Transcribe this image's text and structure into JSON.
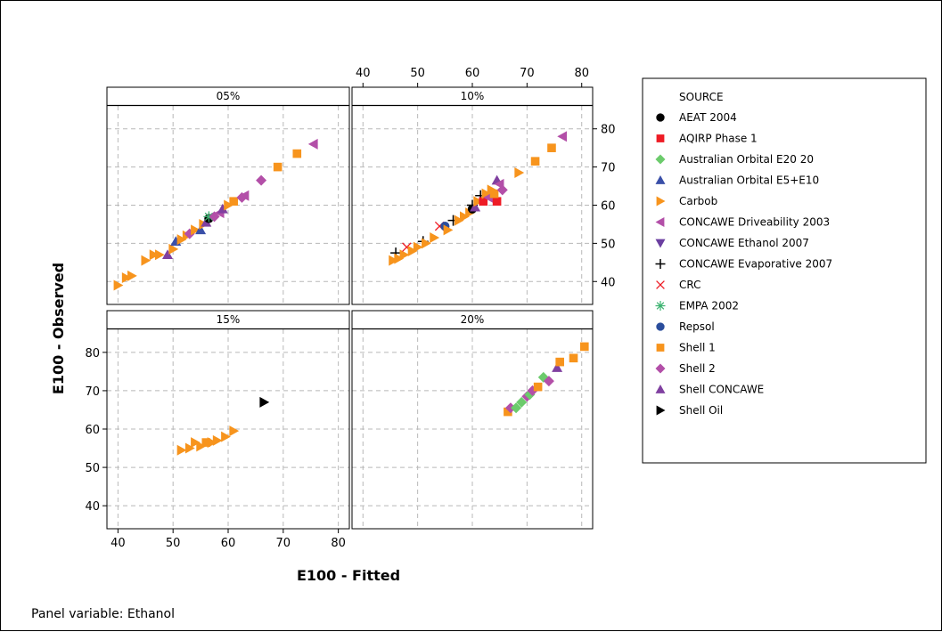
{
  "chart_data": {
    "type": "scatter",
    "title": "",
    "xlabel": "E100 - Fitted",
    "ylabel": "E100 - Observed",
    "footnote": "Panel variable: Ethanol",
    "xlim": [
      38,
      82
    ],
    "ylim": [
      34,
      86
    ],
    "xticks": [
      40,
      50,
      60,
      70,
      80
    ],
    "yticks": [
      40,
      50,
      60,
      70,
      80
    ],
    "grid": true,
    "legend_position": "right",
    "legend_title": "SOURCE",
    "sources": [
      {
        "name": "AEAT 2004",
        "color": "#000000",
        "marker": "circle"
      },
      {
        "name": "AQIRP Phase 1",
        "color": "#ee1c25",
        "marker": "square"
      },
      {
        "name": "Australian Orbital E20 20",
        "color": "#6ccb6c",
        "marker": "diamond"
      },
      {
        "name": "Australian Orbital E5+E10",
        "color": "#3a4fa8",
        "marker": "triangle-up"
      },
      {
        "name": "Carbob",
        "color": "#f7941d",
        "marker": "triangle-right"
      },
      {
        "name": "CONCAWE Driveability 2003",
        "color": "#b34fa8",
        "marker": "triangle-left"
      },
      {
        "name": "CONCAWE Ethanol 2007",
        "color": "#6b3fa0",
        "marker": "triangle-down"
      },
      {
        "name": "CONCAWE Evaporative 2007",
        "color": "#000000",
        "marker": "plus"
      },
      {
        "name": "CRC",
        "color": "#ee1c25",
        "marker": "x"
      },
      {
        "name": "EMPA 2002",
        "color": "#3cb371",
        "marker": "asterisk"
      },
      {
        "name": "Repsol",
        "color": "#2a4d9c",
        "marker": "circle"
      },
      {
        "name": "Shell 1",
        "color": "#f7941d",
        "marker": "square"
      },
      {
        "name": "Shell 2",
        "color": "#b34fa8",
        "marker": "diamond"
      },
      {
        "name": "Shell CONCAWE",
        "color": "#8040a0",
        "marker": "triangle-up"
      },
      {
        "name": "Shell Oil",
        "color": "#000000",
        "marker": "triangle-right"
      }
    ],
    "panels": [
      {
        "label": "05%",
        "points": [
          {
            "s": "Carbob",
            "x": 40,
            "y": 39
          },
          {
            "s": "Carbob",
            "x": 41.5,
            "y": 41
          },
          {
            "s": "Carbob",
            "x": 42.5,
            "y": 41.5
          },
          {
            "s": "Carbob",
            "x": 45,
            "y": 45.5
          },
          {
            "s": "Carbob",
            "x": 46.5,
            "y": 47
          },
          {
            "s": "Carbob",
            "x": 47.5,
            "y": 47
          },
          {
            "s": "Shell CONCAWE",
            "x": 49,
            "y": 47
          },
          {
            "s": "Carbob",
            "x": 50,
            "y": 48.5
          },
          {
            "s": "Australian Orbital E5+E10",
            "x": 50.5,
            "y": 50.5
          },
          {
            "s": "Carbob",
            "x": 51.5,
            "y": 51
          },
          {
            "s": "Carbob",
            "x": 52.5,
            "y": 52
          },
          {
            "s": "Shell 2",
            "x": 53,
            "y": 52.5
          },
          {
            "s": "Carbob",
            "x": 54,
            "y": 53.5
          },
          {
            "s": "Australian Orbital E5+E10",
            "x": 55,
            "y": 53.5
          },
          {
            "s": "Carbob",
            "x": 55.5,
            "y": 55
          },
          {
            "s": "Shell CONCAWE",
            "x": 56,
            "y": 55.5
          },
          {
            "s": "AEAT 2004",
            "x": 56.5,
            "y": 56.5
          },
          {
            "s": "EMPA 2002",
            "x": 56.5,
            "y": 57
          },
          {
            "s": "Shell 2",
            "x": 57.5,
            "y": 57
          },
          {
            "s": "CONCAWE Driveability 2003",
            "x": 58.5,
            "y": 58
          },
          {
            "s": "Shell CONCAWE",
            "x": 59,
            "y": 59
          },
          {
            "s": "Carbob",
            "x": 60,
            "y": 60
          },
          {
            "s": "Shell 1",
            "x": 61,
            "y": 61
          },
          {
            "s": "Shell 2",
            "x": 62.5,
            "y": 62
          },
          {
            "s": "CONCAWE Driveability 2003",
            "x": 63,
            "y": 62.5
          },
          {
            "s": "Shell 2",
            "x": 66,
            "y": 66.5
          },
          {
            "s": "Shell 1",
            "x": 69,
            "y": 70
          },
          {
            "s": "Shell 1",
            "x": 72.5,
            "y": 73.5
          },
          {
            "s": "CONCAWE Driveability 2003",
            "x": 75.5,
            "y": 76
          }
        ]
      },
      {
        "label": "10%",
        "points": [
          {
            "s": "Carbob",
            "x": 45.5,
            "y": 45.5
          },
          {
            "s": "CONCAWE Evaporative 2007",
            "x": 46,
            "y": 47.5
          },
          {
            "s": "Carbob",
            "x": 46.5,
            "y": 46
          },
          {
            "s": "Carbob",
            "x": 47.5,
            "y": 47
          },
          {
            "s": "CRC",
            "x": 48,
            "y": 49
          },
          {
            "s": "Carbob",
            "x": 49,
            "y": 48
          },
          {
            "s": "Carbob",
            "x": 50,
            "y": 49
          },
          {
            "s": "CONCAWE Evaporative 2007",
            "x": 51,
            "y": 50.5
          },
          {
            "s": "Carbob",
            "x": 51.5,
            "y": 50
          },
          {
            "s": "Carbob",
            "x": 53,
            "y": 51.5
          },
          {
            "s": "CRC",
            "x": 54,
            "y": 54.5
          },
          {
            "s": "Repsol",
            "x": 55,
            "y": 54.5
          },
          {
            "s": "Carbob",
            "x": 55.5,
            "y": 53.5
          },
          {
            "s": "CONCAWE Evaporative 2007",
            "x": 56.5,
            "y": 56
          },
          {
            "s": "Carbob",
            "x": 57.5,
            "y": 56
          },
          {
            "s": "Carbob",
            "x": 58.5,
            "y": 57
          },
          {
            "s": "Carbob",
            "x": 59.5,
            "y": 58
          },
          {
            "s": "AEAT 2004",
            "x": 60,
            "y": 59
          },
          {
            "s": "CONCAWE Evaporative 2007",
            "x": 60,
            "y": 60
          },
          {
            "s": "Shell CONCAWE",
            "x": 60.5,
            "y": 59.5
          },
          {
            "s": "Carbob",
            "x": 61,
            "y": 61
          },
          {
            "s": "CONCAWE Evaporative 2007",
            "x": 61.5,
            "y": 62.5
          },
          {
            "s": "AQIRP Phase 1",
            "x": 62,
            "y": 61
          },
          {
            "s": "Carbob",
            "x": 62.5,
            "y": 63
          },
          {
            "s": "CONCAWE Driveability 2003",
            "x": 63,
            "y": 62
          },
          {
            "s": "Carbob",
            "x": 63.5,
            "y": 64
          },
          {
            "s": "AQIRP Phase 1",
            "x": 64.5,
            "y": 61
          },
          {
            "s": "Shell 1",
            "x": 64,
            "y": 63
          },
          {
            "s": "Shell CONCAWE",
            "x": 64.5,
            "y": 66.5
          },
          {
            "s": "CONCAWE Driveability 2003",
            "x": 65,
            "y": 65.5
          },
          {
            "s": "Shell 2",
            "x": 65.5,
            "y": 64
          },
          {
            "s": "Carbob",
            "x": 68.5,
            "y": 68.5
          },
          {
            "s": "Shell 1",
            "x": 71.5,
            "y": 71.5
          },
          {
            "s": "Shell 1",
            "x": 74.5,
            "y": 75
          },
          {
            "s": "CONCAWE Driveability 2003",
            "x": 76.5,
            "y": 78
          }
        ]
      },
      {
        "label": "15%",
        "points": [
          {
            "s": "Carbob",
            "x": 51.5,
            "y": 54.5
          },
          {
            "s": "Carbob",
            "x": 53,
            "y": 55
          },
          {
            "s": "Carbob",
            "x": 54,
            "y": 56.5
          },
          {
            "s": "Carbob",
            "x": 55,
            "y": 55.5
          },
          {
            "s": "Shell 1",
            "x": 56,
            "y": 56.5
          },
          {
            "s": "Carbob",
            "x": 57,
            "y": 56.5
          },
          {
            "s": "Carbob",
            "x": 58,
            "y": 57
          },
          {
            "s": "Carbob",
            "x": 59.5,
            "y": 58
          },
          {
            "s": "Carbob",
            "x": 61,
            "y": 59.5
          },
          {
            "s": "Shell Oil",
            "x": 66.5,
            "y": 67
          }
        ]
      },
      {
        "label": "20%",
        "points": [
          {
            "s": "Shell 1",
            "x": 66.5,
            "y": 64.5
          },
          {
            "s": "Shell 2",
            "x": 67,
            "y": 65.5
          },
          {
            "s": "Australian Orbital E20 20",
            "x": 68,
            "y": 65.5
          },
          {
            "s": "Australian Orbital E20 20",
            "x": 69,
            "y": 67
          },
          {
            "s": "Shell 2",
            "x": 70,
            "y": 68.5
          },
          {
            "s": "Australian Orbital E20 20",
            "x": 70.5,
            "y": 69
          },
          {
            "s": "Shell 2",
            "x": 71,
            "y": 70
          },
          {
            "s": "Shell 1",
            "x": 72,
            "y": 71
          },
          {
            "s": "Australian Orbital E20 20",
            "x": 73,
            "y": 73.5
          },
          {
            "s": "Shell 2",
            "x": 74,
            "y": 72.5
          },
          {
            "s": "Shell CONCAWE",
            "x": 75.5,
            "y": 76
          },
          {
            "s": "Shell 1",
            "x": 76,
            "y": 77.5
          },
          {
            "s": "Shell 1",
            "x": 78.5,
            "y": 78.5
          },
          {
            "s": "Shell 1",
            "x": 80.5,
            "y": 81.5
          }
        ]
      }
    ]
  }
}
